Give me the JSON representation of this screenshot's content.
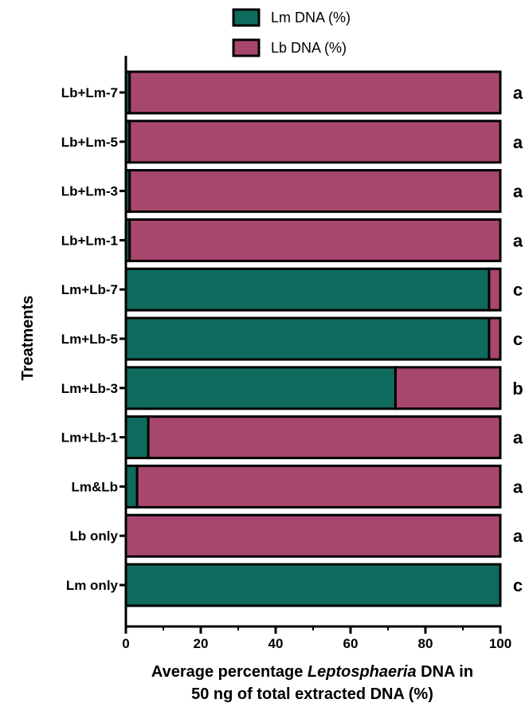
{
  "chart_data": {
    "type": "bar",
    "orientation": "horizontal",
    "stacked": true,
    "categories": [
      "Lb+Lm-7",
      "Lb+Lm-5",
      "Lb+Lm-3",
      "Lb+Lm-1",
      "Lm+Lb-7",
      "Lm+Lb-5",
      "Lm+Lb-3",
      "Lm+Lb-1",
      "Lm&Lb",
      "Lb only",
      "Lm only"
    ],
    "series": [
      {
        "name": "Lm DNA (%)",
        "color": "#0f6b5e",
        "values": [
          1,
          1,
          1,
          1,
          97,
          97,
          72,
          6,
          3,
          0,
          100
        ]
      },
      {
        "name": "Lb DNA (%)",
        "color": "#a8476e",
        "values": [
          99,
          99,
          99,
          99,
          3,
          3,
          28,
          94,
          97,
          100,
          0
        ]
      }
    ],
    "letters": [
      "a",
      "a",
      "a",
      "a",
      "c",
      "c",
      "b",
      "a",
      "a",
      "a",
      "c"
    ],
    "xlim": [
      0,
      100
    ],
    "xticks": [
      0,
      20,
      40,
      60,
      80,
      100
    ],
    "xlabel_line1_prefix": "Average percentage ",
    "xlabel_line1_italic": "Leptosphaeria",
    "xlabel_line1_suffix": " DNA in",
    "xlabel_line2": "50 ng of total extracted DNA (%)",
    "ylabel": "Treatments",
    "legend_placement": "top-center",
    "grid": false
  }
}
